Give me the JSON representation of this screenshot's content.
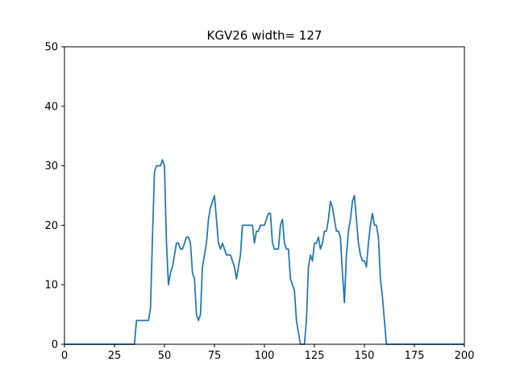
{
  "chart_data": {
    "type": "line",
    "title": "KGV26 width= 127",
    "xlabel": "",
    "ylabel": "",
    "xlim": [
      0,
      200
    ],
    "ylim": [
      0,
      50
    ],
    "xticks": [
      0,
      25,
      50,
      75,
      100,
      125,
      150,
      175,
      200
    ],
    "yticks": [
      0,
      10,
      20,
      30,
      40,
      50
    ],
    "grid": false,
    "color": "#1f77b4",
    "series": [
      {
        "x": [
          0,
          35,
          36,
          42,
          43,
          44,
          45,
          46,
          47,
          48,
          49,
          50,
          51,
          52,
          53,
          54,
          55,
          56,
          57,
          58,
          59,
          60,
          61,
          62,
          63,
          64,
          65,
          66,
          67,
          68,
          69,
          70,
          71,
          72,
          73,
          74,
          75,
          76,
          77,
          78,
          79,
          80,
          81,
          82,
          83,
          84,
          85,
          86,
          87,
          88,
          89,
          90,
          91,
          92,
          93,
          94,
          95,
          96,
          97,
          98,
          99,
          100,
          101,
          102,
          103,
          104,
          105,
          106,
          107,
          108,
          109,
          110,
          111,
          112,
          113,
          114,
          115,
          116,
          118,
          119,
          120,
          121,
          122,
          123,
          124,
          125,
          126,
          127,
          128,
          129,
          130,
          131,
          132,
          133,
          134,
          135,
          136,
          137,
          138,
          139,
          140,
          141,
          142,
          143,
          144,
          145,
          146,
          147,
          148,
          149,
          150,
          151,
          152,
          153,
          154,
          155,
          156,
          157,
          158,
          159,
          160,
          161,
          162,
          200
        ],
        "y": [
          0,
          0,
          4,
          4,
          6,
          18,
          29,
          30,
          30,
          30,
          31,
          30,
          17,
          10,
          12,
          13,
          15,
          17,
          17,
          16,
          16,
          17,
          18,
          18,
          17,
          12,
          11,
          5,
          4,
          5,
          13,
          15,
          17,
          21,
          23,
          24,
          25,
          21,
          17,
          16,
          17,
          16,
          15,
          15,
          15,
          14,
          13,
          11,
          13,
          15,
          20,
          20,
          20,
          20,
          20,
          20,
          17,
          19,
          19,
          20,
          20,
          20,
          21,
          22,
          22,
          17,
          16,
          16,
          16,
          20,
          21,
          17,
          16,
          16,
          11,
          10,
          9,
          4,
          0,
          0,
          0,
          4,
          13,
          15,
          14,
          17,
          17,
          18,
          16,
          17,
          19,
          19,
          21,
          24,
          23,
          21,
          19,
          19,
          18,
          12,
          7,
          15,
          19,
          21,
          24,
          25,
          21,
          17,
          15,
          14,
          14,
          13,
          17,
          20,
          22,
          20,
          20,
          18,
          11,
          8,
          4,
          0,
          0,
          0
        ]
      }
    ]
  }
}
